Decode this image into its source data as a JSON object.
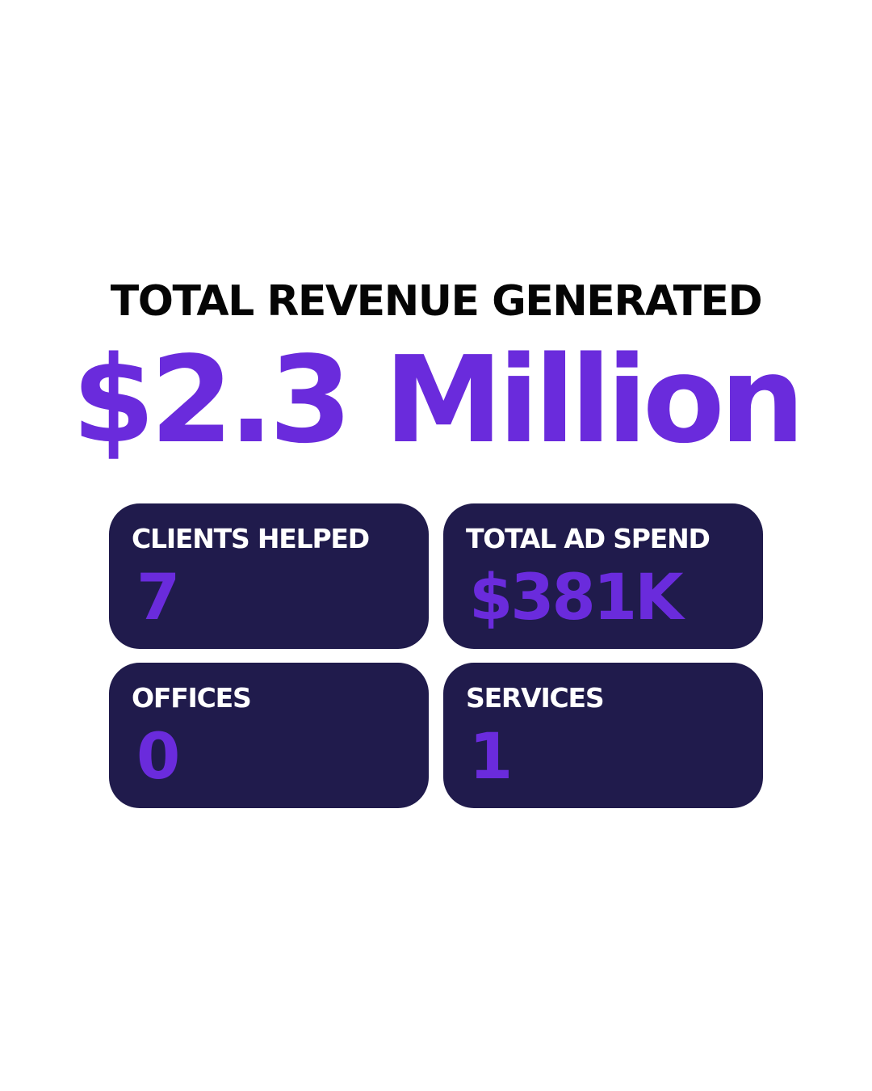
{
  "headline": "TOTAL REVENUE GENERATED",
  "total_revenue": "$2.3 Million",
  "stats": [
    {
      "label": "CLIENTS HELPED",
      "value": "7"
    },
    {
      "label": "TOTAL AD SPEND",
      "value": "$381K"
    },
    {
      "label": "OFFICES",
      "value": "0"
    },
    {
      "label": "SERVICES",
      "value": "1"
    }
  ],
  "colors": {
    "accent": "#6a2bdc",
    "card_background": "#201b4c",
    "headline": "#050505",
    "label": "#ffffff",
    "background": "#ffffff"
  }
}
